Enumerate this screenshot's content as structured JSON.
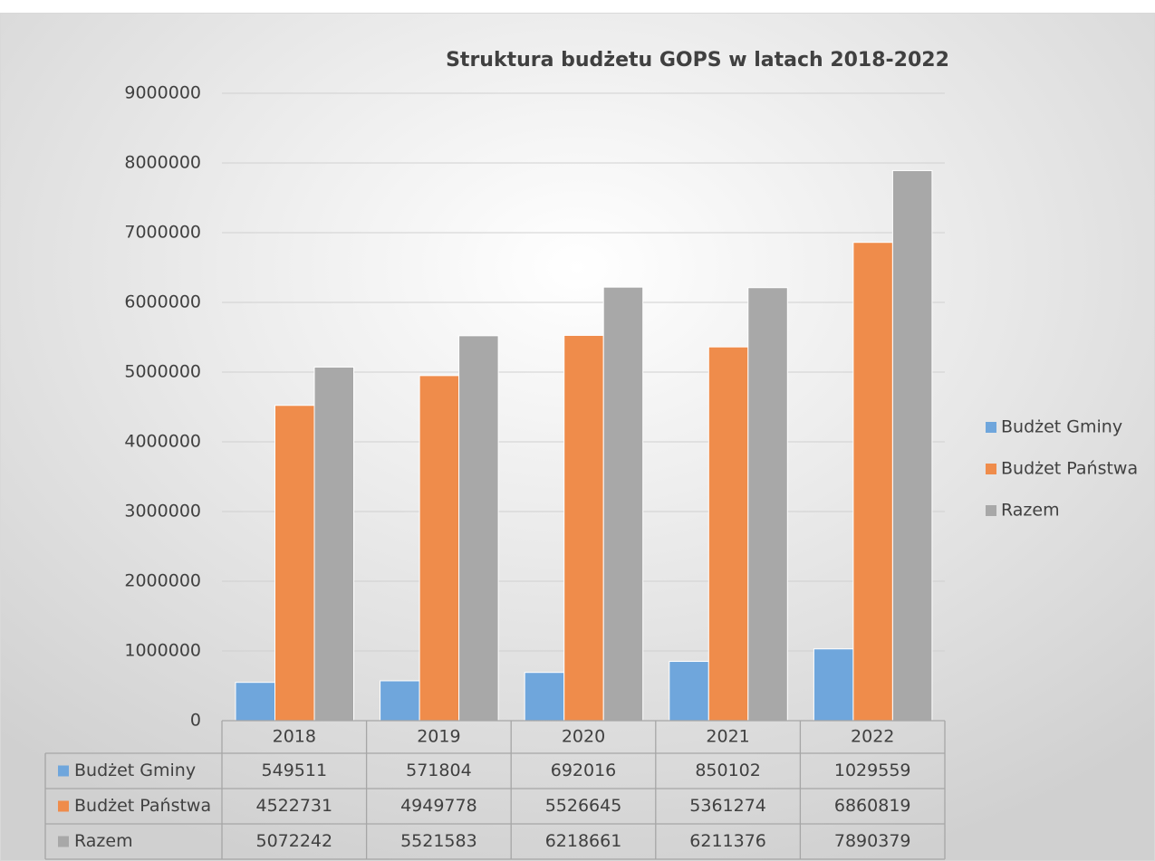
{
  "chart_data": {
    "type": "bar",
    "title": "Struktura budżetu GOPS w latach 2018-2022",
    "categories": [
      "2018",
      "2019",
      "2020",
      "2021",
      "2022"
    ],
    "series": [
      {
        "name": "Budżet Gminy",
        "color": "#6fa6dc",
        "values": [
          549511,
          571804,
          692016,
          850102,
          1029559
        ]
      },
      {
        "name": "Budżet Państwa",
        "color": "#ef8c4b",
        "values": [
          4522731,
          4949778,
          5526645,
          5361274,
          6860819
        ]
      },
      {
        "name": "Razem",
        "color": "#a8a8a8",
        "values": [
          5072242,
          5521583,
          6218661,
          6211376,
          7890379
        ]
      }
    ],
    "ylim": [
      0,
      9000000
    ],
    "yticks": [
      0,
      1000000,
      2000000,
      3000000,
      4000000,
      5000000,
      6000000,
      7000000,
      8000000,
      9000000
    ],
    "grid": true,
    "legend": "right",
    "data_table": true
  }
}
